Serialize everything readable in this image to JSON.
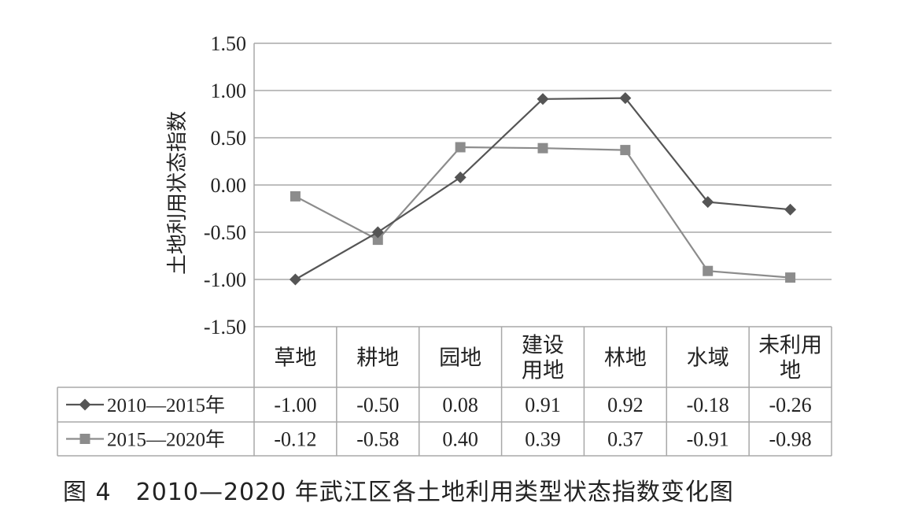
{
  "chart_data": {
    "type": "line",
    "ylabel": "土地利用状态指数",
    "ylim": [
      -1.5,
      1.5
    ],
    "yticks": [
      "1.50",
      "1.00",
      "0.50",
      "0.00",
      "-0.50",
      "-1.00",
      "-1.50"
    ],
    "ytick_values": [
      1.5,
      1.0,
      0.5,
      0.0,
      -0.5,
      -1.0,
      -1.5
    ],
    "categories": [
      "草地",
      "耕地",
      "园地",
      "建设用地",
      "林地",
      "水域",
      "未利用地"
    ],
    "category_lines": [
      [
        "草地"
      ],
      [
        "耕地"
      ],
      [
        "园地"
      ],
      [
        "建设",
        "用地"
      ],
      [
        "林地"
      ],
      [
        "水域"
      ],
      [
        "未利用",
        "地"
      ]
    ],
    "grid": true,
    "data_table": true,
    "series": [
      {
        "name": "2010—2015年",
        "marker": "diamond",
        "color": "#555555",
        "values": [
          -1.0,
          -0.5,
          0.08,
          0.91,
          0.92,
          -0.18,
          -0.26
        ],
        "labels": [
          "-1.00",
          "-0.50",
          "0.08",
          "0.91",
          "0.92",
          "-0.18",
          "-0.26"
        ]
      },
      {
        "name": "2015—2020年",
        "marker": "square",
        "color": "#8c8c8c",
        "values": [
          -0.12,
          -0.58,
          0.4,
          0.39,
          0.37,
          -0.91,
          -0.98
        ],
        "labels": [
          "-0.12",
          "-0.58",
          "0.40",
          "0.39",
          "0.37",
          "-0.91",
          "-0.98"
        ]
      }
    ]
  },
  "caption": "图 4　2010—2020 年武江区各土地利用类型状态指数变化图"
}
